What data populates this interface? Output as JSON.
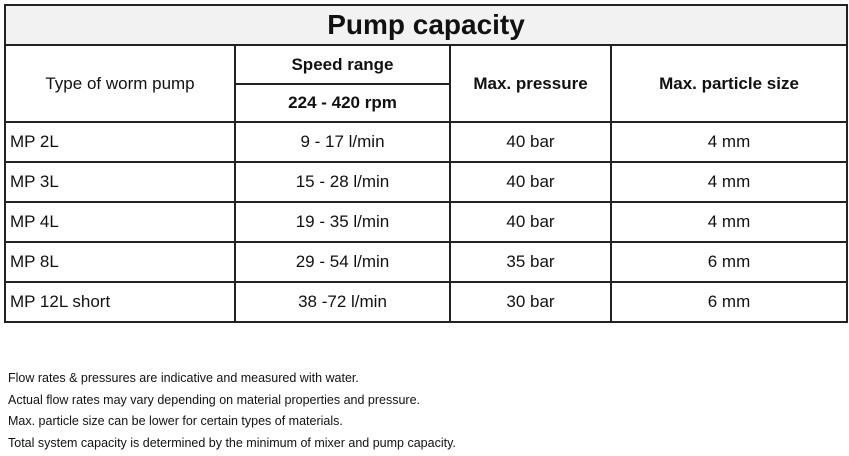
{
  "title": "Pump capacity",
  "headers": {
    "type": "Type of worm pump",
    "speed_range": "Speed range",
    "speed_value": "224  - 420 rpm",
    "max_pressure": "Max. pressure",
    "max_particle": "Max. particle size"
  },
  "rows": [
    {
      "type": "MP 2L",
      "flow": "9 - 17 l/min",
      "pressure": "40 bar",
      "particle": "4 mm"
    },
    {
      "type": "MP 3L",
      "flow": "15 - 28 l/min",
      "pressure": "40 bar",
      "particle": "4 mm"
    },
    {
      "type": "MP 4L",
      "flow": "19 - 35 l/min",
      "pressure": "40 bar",
      "particle": "4 mm"
    },
    {
      "type": "MP 8L",
      "flow": "29 - 54 l/min",
      "pressure": "35 bar",
      "particle": "6 mm"
    },
    {
      "type": "MP 12L short",
      "flow": "38 -72 l/min",
      "pressure": "30 bar",
      "particle": "6 mm"
    }
  ],
  "notes": [
    "Flow rates & pressures are indicative and measured with water.",
    "Actual flow rates may vary depending on material properties and pressure.",
    "Max. particle size can be lower for certain types of materials.",
    "Total system capacity is determined by the minimum of mixer and pump capacity."
  ]
}
